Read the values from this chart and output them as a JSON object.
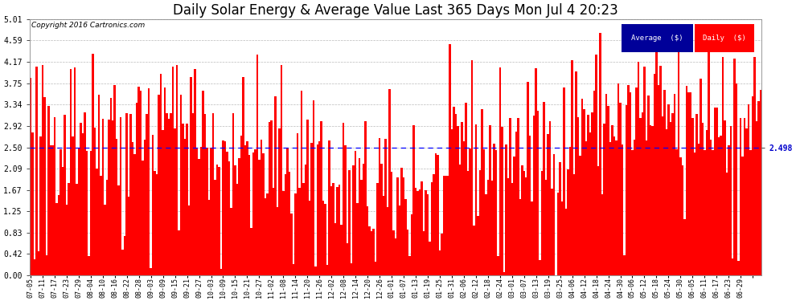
{
  "title": "Daily Solar Energy & Average Value Last 365 Days Mon Jul 4 20:23",
  "copyright": "Copyright 2016 Cartronics.com",
  "average_value": 2.498,
  "average_label": "2.498",
  "yticks": [
    0.0,
    0.42,
    0.83,
    1.25,
    1.67,
    2.09,
    2.5,
    2.92,
    3.34,
    3.75,
    4.17,
    4.59,
    5.01
  ],
  "ymax": 5.01,
  "ymin": 0.0,
  "bar_color": "#FF0000",
  "avg_line_color": "#0000FF",
  "background_color": "#FFFFFF",
  "grid_color": "#BBBBBB",
  "legend_avg_bg": "#000099",
  "legend_daily_bg": "#CC0000",
  "title_fontsize": 12,
  "xtick_labels": [
    "07-05",
    "07-11",
    "07-17",
    "07-23",
    "07-29",
    "08-04",
    "08-10",
    "08-16",
    "08-22",
    "08-28",
    "09-03",
    "09-09",
    "09-15",
    "09-21",
    "09-27",
    "10-03",
    "10-09",
    "10-15",
    "10-21",
    "10-27",
    "11-02",
    "11-08",
    "11-14",
    "11-20",
    "11-26",
    "12-02",
    "12-08",
    "12-14",
    "12-20",
    "12-26",
    "01-01",
    "01-07",
    "01-13",
    "01-19",
    "01-25",
    "01-31",
    "02-06",
    "02-12",
    "02-18",
    "02-24",
    "03-01",
    "03-07",
    "03-13",
    "03-19",
    "03-25",
    "04-06",
    "04-12",
    "04-18",
    "04-24",
    "04-30",
    "05-06",
    "05-12",
    "05-18",
    "05-24",
    "05-30",
    "06-05",
    "06-11",
    "06-17",
    "06-23",
    "06-29"
  ],
  "num_bars": 365,
  "seed": 42
}
